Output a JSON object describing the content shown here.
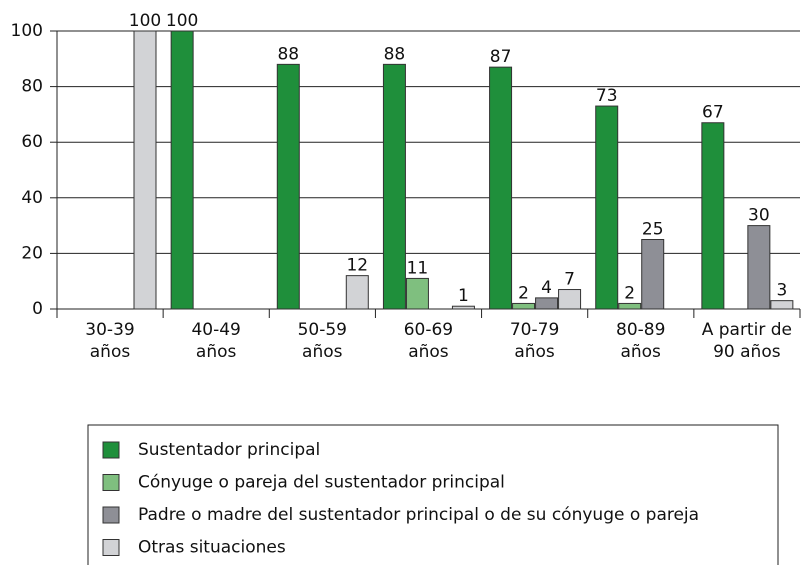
{
  "chart_data": {
    "type": "bar",
    "categories": [
      "30-39\naños",
      "40-49\naños",
      "50-59\naños",
      "60-69\naños",
      "70-79\naños",
      "80-89\naños",
      "A partir de\n90 años"
    ],
    "series": [
      {
        "name": "Sustentador principal",
        "color": "#1f8f3b",
        "values": [
          null,
          100,
          88,
          88,
          87,
          73,
          67
        ]
      },
      {
        "name": "Cónyuge o pareja del sustentador principal",
        "color": "#7fbf7f",
        "values": [
          null,
          null,
          null,
          11,
          2,
          2,
          null
        ]
      },
      {
        "name": "Padre o madre del sustentador principal o de su cónyuge o pareja",
        "color": "#8e8f96",
        "values": [
          null,
          null,
          null,
          null,
          4,
          25,
          30
        ]
      },
      {
        "name": "Otras situaciones",
        "color": "#d2d3d6",
        "values": [
          100,
          null,
          12,
          1,
          7,
          null,
          3
        ]
      }
    ],
    "ylim": [
      0,
      100
    ],
    "yticks": [
      0,
      20,
      40,
      60,
      80,
      100
    ],
    "grid": true,
    "legend": "bottom"
  }
}
